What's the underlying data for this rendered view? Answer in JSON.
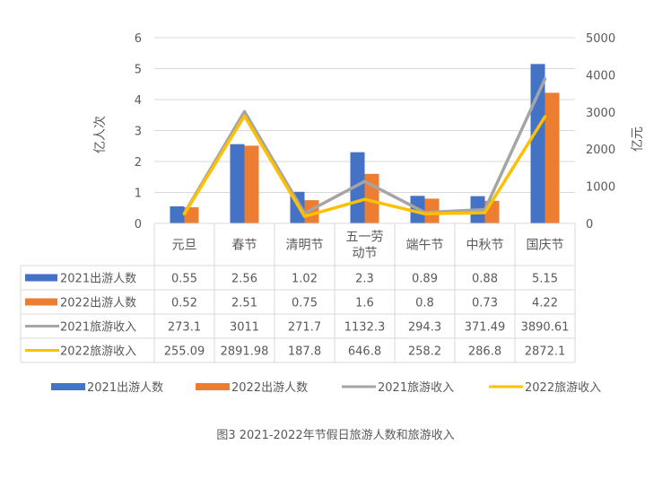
{
  "caption": "图3   2021-2022年节假日旅游人数和旅游收入",
  "chart_data": {
    "type": "bar",
    "title": "",
    "ylabel": "亿人次",
    "y2label": "亿元",
    "ylim": [
      0,
      6
    ],
    "y2lim": [
      0,
      5000
    ],
    "yticks": [
      "0",
      "1",
      "2",
      "3",
      "4",
      "5",
      "6"
    ],
    "y2ticks": [
      "0",
      "1000",
      "2000",
      "3000",
      "4000",
      "5000"
    ],
    "categories": [
      "元旦",
      "春节",
      "清明节",
      "五一劳动节",
      "端午节",
      "中秋节",
      "国庆节"
    ],
    "category_lines": [
      [
        "元旦"
      ],
      [
        "春节"
      ],
      [
        "清明节"
      ],
      [
        "五一劳",
        "动节"
      ],
      [
        "端午节"
      ],
      [
        "中秋节"
      ],
      [
        "国庆节"
      ]
    ],
    "legend_position": "bottom",
    "grid": true,
    "series": [
      {
        "name": "2021出游人数",
        "kind": "bar",
        "axis": "left",
        "color": "#4472C4",
        "values": [
          0.55,
          2.56,
          1.02,
          2.3,
          0.89,
          0.88,
          5.15
        ],
        "labels": [
          "0.55",
          "2.56",
          "1.02",
          "2.3",
          "0.89",
          "0.88",
          "5.15"
        ]
      },
      {
        "name": "2022出游人数",
        "kind": "bar",
        "axis": "left",
        "color": "#ED7D31",
        "values": [
          0.52,
          2.51,
          0.75,
          1.6,
          0.8,
          0.73,
          4.22
        ],
        "labels": [
          "0.52",
          "2.51",
          "0.75",
          "1.6",
          "0.8",
          "0.73",
          "4.22"
        ]
      },
      {
        "name": "2021旅游收入",
        "kind": "line",
        "axis": "right",
        "color": "#A5A5A5",
        "values": [
          273.1,
          3011,
          271.7,
          1132.3,
          294.3,
          371.49,
          3890.61
        ],
        "labels": [
          "273.1",
          "3011",
          "271.7",
          "1132.3",
          "294.3",
          "371.49",
          "3890.61"
        ]
      },
      {
        "name": "2022旅游收入",
        "kind": "line",
        "axis": "right",
        "color": "#FFC000",
        "values": [
          255.09,
          2891.98,
          187.8,
          646.8,
          258.2,
          286.8,
          2872.1
        ],
        "labels": [
          "255.09",
          "2891.98",
          "187.8",
          "646.8",
          "258.2",
          "286.8",
          "2872.1"
        ]
      }
    ]
  }
}
